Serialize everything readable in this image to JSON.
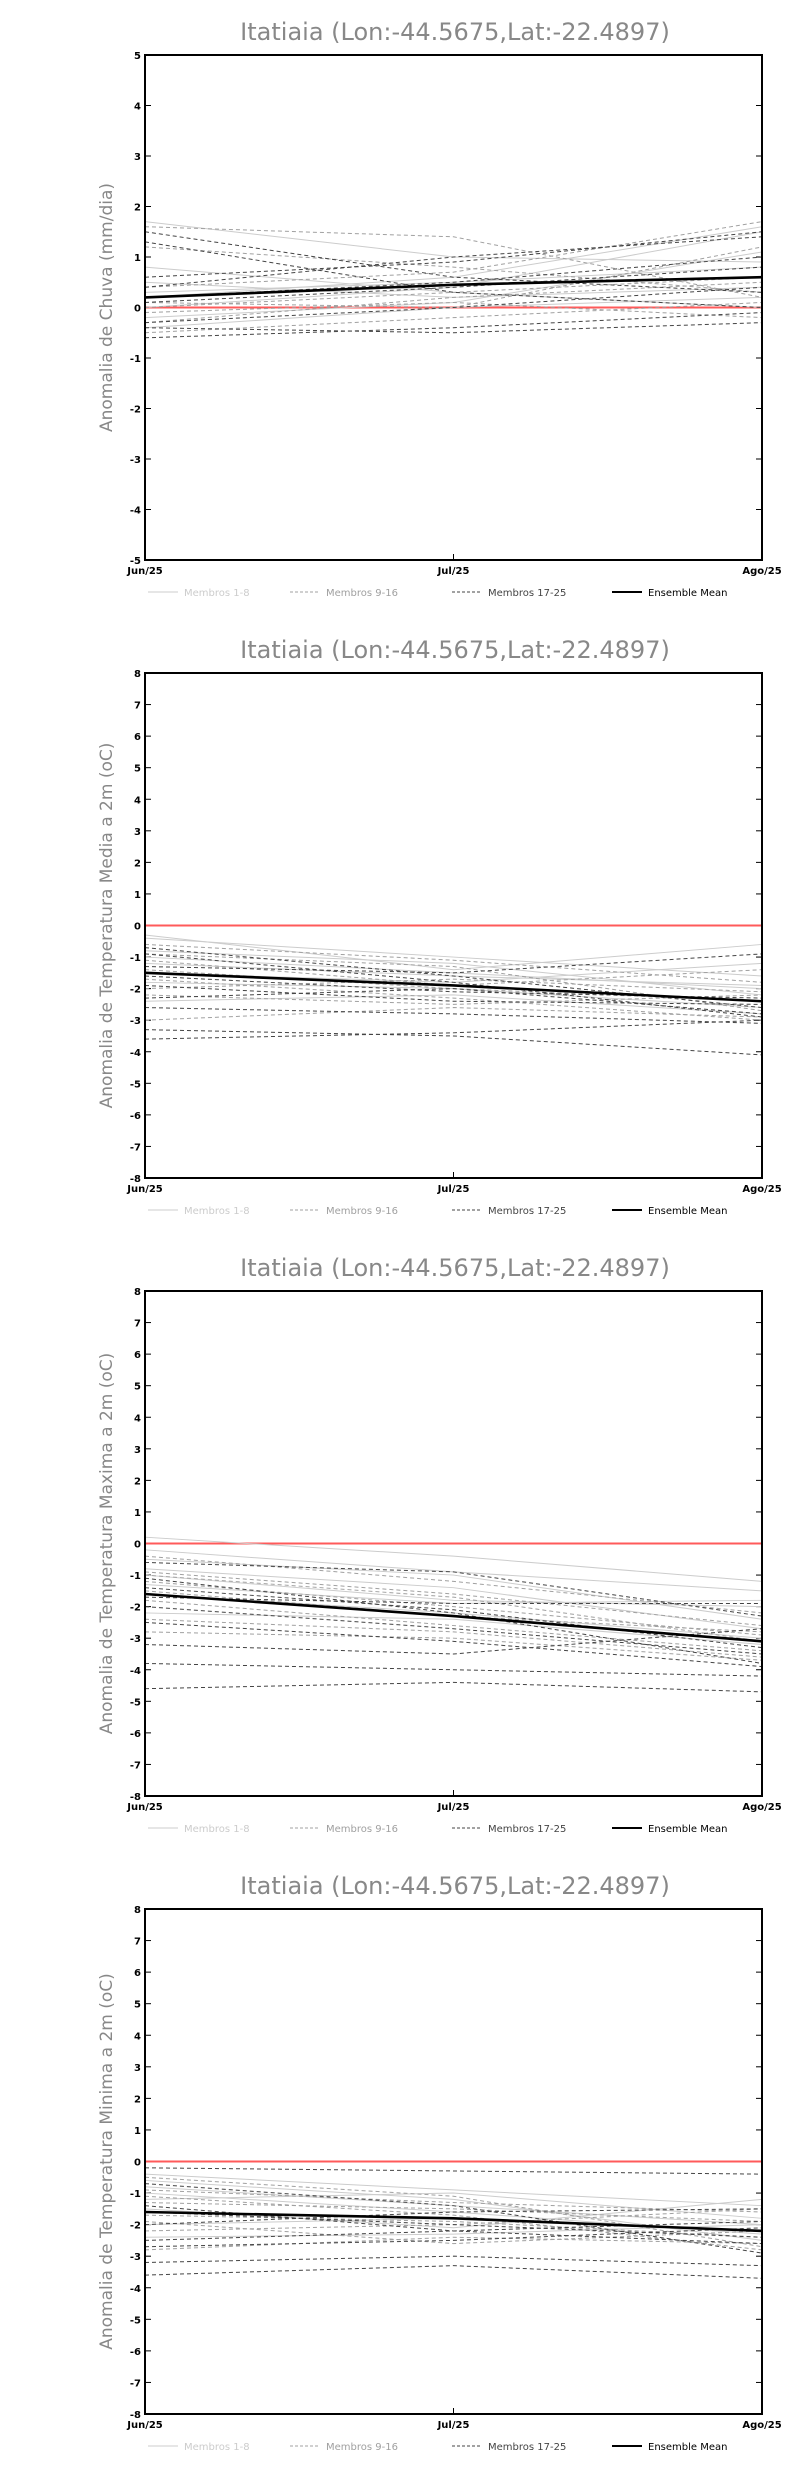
{
  "chart_data": [
    {
      "type": "line",
      "title": "Itatiaia (Lon:-44.5675,Lat:-22.4897)",
      "xlabel": "",
      "ylabel": "Anomalia de Chuva (mm/dia)",
      "categories": [
        "Jun/25",
        "Jul/25",
        "Ago/25"
      ],
      "ylim": [
        -5,
        5
      ],
      "yticks": [
        -5,
        -4,
        -3,
        -2,
        -1,
        0,
        1,
        2,
        3,
        4,
        5
      ],
      "zero_line": 0,
      "legend": [
        {
          "label": "Membros 1-8",
          "color": "#cccccc",
          "dash": "solid"
        },
        {
          "label": "Membros 9-16",
          "color": "#a0a0a0",
          "dash": "dashed"
        },
        {
          "label": "Membros 17-25",
          "color": "#444444",
          "dash": "dashed"
        },
        {
          "label": "Ensemble Mean",
          "color": "#000000",
          "dash": "solid"
        }
      ],
      "series": [
        {
          "group": 1,
          "values": [
            0.3,
            0.5,
            0.8
          ]
        },
        {
          "group": 1,
          "values": [
            -0.2,
            0.1,
            1.1
          ]
        },
        {
          "group": 1,
          "values": [
            0.5,
            0.2,
            0.4
          ]
        },
        {
          "group": 1,
          "values": [
            1.7,
            1.0,
            0.9
          ]
        },
        {
          "group": 1,
          "values": [
            0.0,
            0.4,
            1.5
          ]
        },
        {
          "group": 1,
          "values": [
            -0.4,
            0.0,
            0.2
          ]
        },
        {
          "group": 1,
          "values": [
            0.2,
            0.6,
            1.6
          ]
        },
        {
          "group": 1,
          "values": [
            0.8,
            0.3,
            0.0
          ]
        },
        {
          "group": 2,
          "values": [
            -0.3,
            0.2,
            0.5
          ]
        },
        {
          "group": 2,
          "values": [
            1.2,
            0.8,
            0.3
          ]
        },
        {
          "group": 2,
          "values": [
            0.1,
            0.0,
            1.2
          ]
        },
        {
          "group": 2,
          "values": [
            -0.5,
            -0.2,
            0.1
          ]
        },
        {
          "group": 2,
          "values": [
            0.4,
            0.7,
            1.7
          ]
        },
        {
          "group": 2,
          "values": [
            0.0,
            0.3,
            0.6
          ]
        },
        {
          "group": 2,
          "values": [
            1.6,
            1.4,
            0.2
          ]
        },
        {
          "group": 2,
          "values": [
            -0.1,
            0.1,
            -0.2
          ]
        },
        {
          "group": 3,
          "values": [
            1.5,
            0.6,
            0.3
          ]
        },
        {
          "group": 3,
          "values": [
            0.4,
            1.0,
            1.4
          ]
        },
        {
          "group": 3,
          "values": [
            -0.6,
            -0.4,
            -0.1
          ]
        },
        {
          "group": 3,
          "values": [
            0.2,
            0.5,
            1.0
          ]
        },
        {
          "group": 3,
          "values": [
            1.3,
            0.3,
            0.0
          ]
        },
        {
          "group": 3,
          "values": [
            0.6,
            0.9,
            1.5
          ]
        },
        {
          "group": 3,
          "values": [
            -0.3,
            0.0,
            0.4
          ]
        },
        {
          "group": 3,
          "values": [
            0.1,
            0.4,
            0.8
          ]
        },
        {
          "group": 3,
          "values": [
            -0.4,
            -0.5,
            -0.3
          ]
        },
        {
          "group": "mean",
          "values": [
            0.2,
            0.45,
            0.6
          ]
        }
      ]
    },
    {
      "type": "line",
      "title": "Itatiaia (Lon:-44.5675,Lat:-22.4897)",
      "xlabel": "",
      "ylabel": "Anomalia de Temperatura Media a 2m (oC)",
      "categories": [
        "Jun/25",
        "Jul/25",
        "Ago/25"
      ],
      "ylim": [
        -8,
        8
      ],
      "yticks": [
        -8,
        -7,
        -6,
        -5,
        -4,
        -3,
        -2,
        -1,
        0,
        1,
        2,
        3,
        4,
        5,
        6,
        7,
        8
      ],
      "zero_line": 0,
      "legend": [
        {
          "label": "Membros 1-8",
          "color": "#cccccc",
          "dash": "solid"
        },
        {
          "label": "Membros 9-16",
          "color": "#a0a0a0",
          "dash": "dashed"
        },
        {
          "label": "Membros 17-25",
          "color": "#444444",
          "dash": "dashed"
        },
        {
          "label": "Ensemble Mean",
          "color": "#000000",
          "dash": "solid"
        }
      ],
      "series": [
        {
          "group": 1,
          "values": [
            -0.4,
            -1.0,
            -1.6
          ]
        },
        {
          "group": 1,
          "values": [
            -0.8,
            -1.2,
            -2.2
          ]
        },
        {
          "group": 1,
          "values": [
            -1.2,
            -1.6,
            -1.9
          ]
        },
        {
          "group": 1,
          "values": [
            -0.3,
            -1.4,
            -0.6
          ]
        },
        {
          "group": 1,
          "values": [
            -1.8,
            -2.0,
            -2.6
          ]
        },
        {
          "group": 1,
          "values": [
            -1.0,
            -1.5,
            -2.0
          ]
        },
        {
          "group": 1,
          "values": [
            -2.4,
            -2.2,
            -2.8
          ]
        },
        {
          "group": 1,
          "values": [
            -1.5,
            -1.8,
            -1.2
          ]
        },
        {
          "group": 2,
          "values": [
            -0.6,
            -1.1,
            -1.8
          ]
        },
        {
          "group": 2,
          "values": [
            -1.4,
            -2.0,
            -2.4
          ]
        },
        {
          "group": 2,
          "values": [
            -2.0,
            -1.7,
            -2.1
          ]
        },
        {
          "group": 2,
          "values": [
            -0.9,
            -1.3,
            -2.7
          ]
        },
        {
          "group": 2,
          "values": [
            -3.0,
            -2.6,
            -2.9
          ]
        },
        {
          "group": 2,
          "values": [
            -1.1,
            -1.9,
            -1.4
          ]
        },
        {
          "group": 2,
          "values": [
            -1.7,
            -2.3,
            -3.0
          ]
        },
        {
          "group": 2,
          "values": [
            -2.2,
            -2.5,
            -2.2
          ]
        },
        {
          "group": 3,
          "values": [
            -0.7,
            -1.6,
            -2.6
          ]
        },
        {
          "group": 3,
          "values": [
            -1.6,
            -2.1,
            -2.3
          ]
        },
        {
          "group": 3,
          "values": [
            -2.6,
            -2.8,
            -3.1
          ]
        },
        {
          "group": 3,
          "values": [
            -3.3,
            -3.5,
            -4.1
          ]
        },
        {
          "group": 3,
          "values": [
            -1.3,
            -1.5,
            -0.9
          ]
        },
        {
          "group": 3,
          "values": [
            -2.3,
            -2.0,
            -2.8
          ]
        },
        {
          "group": 3,
          "values": [
            -1.9,
            -2.4,
            -2.5
          ]
        },
        {
          "group": 3,
          "values": [
            -3.6,
            -3.4,
            -3.0
          ]
        },
        {
          "group": 3,
          "values": [
            -0.9,
            -1.8,
            -2.9
          ]
        },
        {
          "group": "mean",
          "values": [
            -1.5,
            -1.9,
            -2.4
          ]
        }
      ]
    },
    {
      "type": "line",
      "title": "Itatiaia (Lon:-44.5675,Lat:-22.4897)",
      "xlabel": "",
      "ylabel": "Anomalia de Temperatura Maxima a 2m (oC)",
      "categories": [
        "Jun/25",
        "Jul/25",
        "Ago/25"
      ],
      "ylim": [
        -8,
        8
      ],
      "yticks": [
        -8,
        -7,
        -6,
        -5,
        -4,
        -3,
        -2,
        -1,
        0,
        1,
        2,
        3,
        4,
        5,
        6,
        7,
        8
      ],
      "zero_line": 0,
      "legend": [
        {
          "label": "Membros 1-8",
          "color": "#cccccc",
          "dash": "solid"
        },
        {
          "label": "Membros 9-16",
          "color": "#a0a0a0",
          "dash": "dashed"
        },
        {
          "label": "Membros 17-25",
          "color": "#444444",
          "dash": "dashed"
        },
        {
          "label": "Ensemble Mean",
          "color": "#000000",
          "dash": "solid"
        }
      ],
      "series": [
        {
          "group": 1,
          "values": [
            0.2,
            -0.4,
            -1.2
          ]
        },
        {
          "group": 1,
          "values": [
            -0.5,
            -1.0,
            -2.4
          ]
        },
        {
          "group": 1,
          "values": [
            -1.0,
            -1.8,
            -2.0
          ]
        },
        {
          "group": 1,
          "values": [
            -0.2,
            -0.9,
            -1.5
          ]
        },
        {
          "group": 1,
          "values": [
            -1.6,
            -2.2,
            -3.0
          ]
        },
        {
          "group": 1,
          "values": [
            -0.8,
            -1.4,
            -2.7
          ]
        },
        {
          "group": 1,
          "values": [
            -2.2,
            -2.4,
            -3.2
          ]
        },
        {
          "group": 1,
          "values": [
            -1.3,
            -1.9,
            -1.8
          ]
        },
        {
          "group": 2,
          "values": [
            -0.4,
            -1.2,
            -2.2
          ]
        },
        {
          "group": 2,
          "values": [
            -1.2,
            -2.0,
            -2.9
          ]
        },
        {
          "group": 2,
          "values": [
            -1.8,
            -2.6,
            -3.4
          ]
        },
        {
          "group": 2,
          "values": [
            -0.9,
            -1.6,
            -2.6
          ]
        },
        {
          "group": 2,
          "values": [
            -2.8,
            -3.0,
            -3.7
          ]
        },
        {
          "group": 2,
          "values": [
            -1.0,
            -1.7,
            -3.1
          ]
        },
        {
          "group": 2,
          "values": [
            -1.5,
            -2.3,
            -2.8
          ]
        },
        {
          "group": 2,
          "values": [
            -2.4,
            -2.8,
            -3.6
          ]
        },
        {
          "group": 3,
          "values": [
            -0.6,
            -0.9,
            -2.3
          ]
        },
        {
          "group": 3,
          "values": [
            -1.4,
            -2.1,
            -3.3
          ]
        },
        {
          "group": 3,
          "values": [
            -2.5,
            -3.1,
            -3.9
          ]
        },
        {
          "group": 3,
          "values": [
            -3.8,
            -4.0,
            -4.2
          ]
        },
        {
          "group": 3,
          "values": [
            -4.6,
            -4.4,
            -4.7
          ]
        },
        {
          "group": 3,
          "values": [
            -1.1,
            -2.2,
            -3.8
          ]
        },
        {
          "group": 3,
          "values": [
            -2.0,
            -2.7,
            -3.5
          ]
        },
        {
          "group": 3,
          "values": [
            -3.2,
            -3.5,
            -2.7
          ]
        },
        {
          "group": 3,
          "values": [
            -1.7,
            -1.9,
            -1.9
          ]
        },
        {
          "group": "mean",
          "values": [
            -1.6,
            -2.3,
            -3.1
          ]
        }
      ]
    },
    {
      "type": "line",
      "title": "Itatiaia (Lon:-44.5675,Lat:-22.4897)",
      "xlabel": "",
      "ylabel": "Anomalia de Temperatura Minima a 2m (oC)",
      "categories": [
        "Jun/25",
        "Jul/25",
        "Ago/25"
      ],
      "ylim": [
        -8,
        8
      ],
      "yticks": [
        -8,
        -7,
        -6,
        -5,
        -4,
        -3,
        -2,
        -1,
        0,
        1,
        2,
        3,
        4,
        5,
        6,
        7,
        8
      ],
      "zero_line": 0,
      "legend": [
        {
          "label": "Membros 1-8",
          "color": "#cccccc",
          "dash": "solid"
        },
        {
          "label": "Membros 9-16",
          "color": "#a0a0a0",
          "dash": "dashed"
        },
        {
          "label": "Membros 17-25",
          "color": "#444444",
          "dash": "dashed"
        },
        {
          "label": "Ensemble Mean",
          "color": "#000000",
          "dash": "solid"
        }
      ],
      "series": [
        {
          "group": 1,
          "values": [
            -0.4,
            -0.9,
            -1.4
          ]
        },
        {
          "group": 1,
          "values": [
            -0.8,
            -1.4,
            -2.0
          ]
        },
        {
          "group": 1,
          "values": [
            -1.2,
            -1.0,
            -1.8
          ]
        },
        {
          "group": 1,
          "values": [
            -2.0,
            -1.8,
            -2.2
          ]
        },
        {
          "group": 1,
          "values": [
            -1.5,
            -2.1,
            -1.2
          ]
        },
        {
          "group": 1,
          "values": [
            -0.6,
            -1.2,
            -2.5
          ]
        },
        {
          "group": 1,
          "values": [
            -2.4,
            -2.3,
            -2.0
          ]
        },
        {
          "group": 1,
          "values": [
            -1.0,
            -1.6,
            -2.3
          ]
        },
        {
          "group": 2,
          "values": [
            -0.9,
            -1.3,
            -1.6
          ]
        },
        {
          "group": 2,
          "values": [
            -1.7,
            -1.9,
            -2.4
          ]
        },
        {
          "group": 2,
          "values": [
            -2.8,
            -2.4,
            -2.6
          ]
        },
        {
          "group": 2,
          "values": [
            -1.3,
            -1.5,
            -1.9
          ]
        },
        {
          "group": 2,
          "values": [
            -0.5,
            -1.1,
            -2.7
          ]
        },
        {
          "group": 2,
          "values": [
            -2.2,
            -2.0,
            -1.5
          ]
        },
        {
          "group": 2,
          "values": [
            -1.9,
            -2.6,
            -2.2
          ]
        },
        {
          "group": 2,
          "values": [
            -1.1,
            -1.7,
            -2.8
          ]
        },
        {
          "group": 3,
          "values": [
            -0.7,
            -1.4,
            -2.9
          ]
        },
        {
          "group": 3,
          "values": [
            -2.5,
            -2.2,
            -1.9
          ]
        },
        {
          "group": 3,
          "values": [
            -3.2,
            -3.0,
            -3.3
          ]
        },
        {
          "group": 3,
          "values": [
            -3.6,
            -3.3,
            -3.7
          ]
        },
        {
          "group": 3,
          "values": [
            -1.6,
            -2.0,
            -2.4
          ]
        },
        {
          "group": 3,
          "values": [
            -2.0,
            -1.6,
            -1.5
          ]
        },
        {
          "group": 3,
          "values": [
            -1.4,
            -2.2,
            -2.6
          ]
        },
        {
          "group": 3,
          "values": [
            -2.7,
            -2.5,
            -2.1
          ]
        },
        {
          "group": 3,
          "values": [
            -0.2,
            -0.3,
            -0.4
          ]
        },
        {
          "group": "mean",
          "values": [
            -1.6,
            -1.8,
            -2.2
          ]
        }
      ]
    }
  ]
}
